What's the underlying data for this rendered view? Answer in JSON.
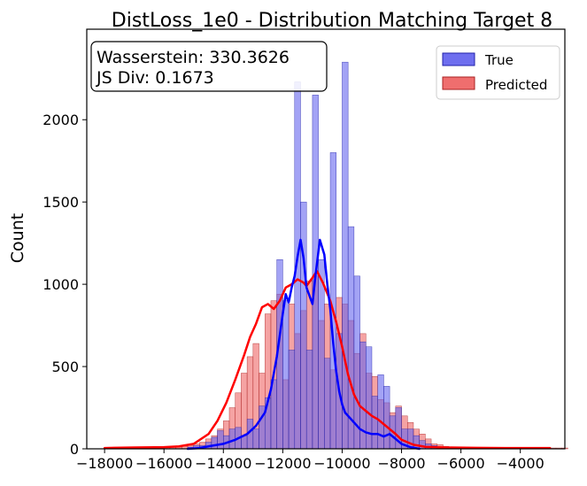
{
  "chart_data": {
    "type": "histogram",
    "title": "DistLoss_1e0 - Distribution Matching Target 8",
    "xlabel": "",
    "ylabel": "Count",
    "xlim": [
      -18600,
      -2500
    ],
    "ylim": [
      0,
      2550
    ],
    "x_ticks": [
      -18000,
      -16000,
      -14000,
      -12000,
      -10000,
      -8000,
      -6000,
      -4000
    ],
    "x_tick_labels": [
      "−18000",
      "−16000",
      "−14000",
      "−12000",
      "−10000",
      "−8000",
      "−6000",
      "−4000"
    ],
    "y_ticks": [
      0,
      500,
      1000,
      1500,
      2000
    ],
    "y_tick_labels": [
      "0",
      "500",
      "1000",
      "1500",
      "2000"
    ],
    "annotation": {
      "line1": "Wasserstein: 330.3626",
      "line2": "JS Div: 0.1673"
    },
    "legend": {
      "position": "top-right",
      "entries": [
        "True",
        "Predicted"
      ]
    },
    "colors": {
      "true_fill": "#6666ee",
      "true_edge": "#2222aa",
      "true_kde": "#0000ff",
      "pred_fill": "#ee6666",
      "pred_edge": "#aa2222",
      "pred_kde": "#ff0000"
    },
    "bins": {
      "start": -18000,
      "width": 200
    },
    "series": [
      {
        "name": "True",
        "counts": [
          0,
          0,
          0,
          0,
          0,
          0,
          0,
          0,
          0,
          0,
          0,
          0,
          0,
          0,
          10,
          20,
          20,
          40,
          70,
          110,
          80,
          120,
          130,
          80,
          180,
          120,
          260,
          310,
          420,
          1150,
          900,
          600,
          2230,
          1500,
          600,
          2150,
          1150,
          550,
          1800,
          700,
          2350,
          1350,
          1050,
          650,
          620,
          320,
          450,
          380,
          200,
          250,
          120,
          120,
          80,
          50,
          30,
          20,
          10,
          0,
          0,
          0,
          0,
          0,
          0,
          0,
          0,
          0,
          0,
          0,
          0,
          0,
          0,
          0,
          0,
          0,
          0,
          0,
          0,
          0
        ],
        "kde": [
          [
            -15200,
            0
          ],
          [
            -14800,
            5
          ],
          [
            -14400,
            18
          ],
          [
            -14000,
            30
          ],
          [
            -13600,
            55
          ],
          [
            -13200,
            90
          ],
          [
            -12900,
            140
          ],
          [
            -12600,
            220
          ],
          [
            -12400,
            360
          ],
          [
            -12200,
            560
          ],
          [
            -12000,
            820
          ],
          [
            -11900,
            940
          ],
          [
            -11800,
            890
          ],
          [
            -11700,
            980
          ],
          [
            -11600,
            1050
          ],
          [
            -11500,
            1170
          ],
          [
            -11400,
            1270
          ],
          [
            -11300,
            1160
          ],
          [
            -11200,
            980
          ],
          [
            -11000,
            880
          ],
          [
            -10900,
            1050
          ],
          [
            -10750,
            1270
          ],
          [
            -10600,
            1180
          ],
          [
            -10500,
            1000
          ],
          [
            -10400,
            850
          ],
          [
            -10300,
            640
          ],
          [
            -10200,
            470
          ],
          [
            -10100,
            350
          ],
          [
            -10000,
            270
          ],
          [
            -9900,
            220
          ],
          [
            -9800,
            200
          ],
          [
            -9600,
            160
          ],
          [
            -9400,
            120
          ],
          [
            -9200,
            100
          ],
          [
            -9000,
            90
          ],
          [
            -8800,
            90
          ],
          [
            -8600,
            75
          ],
          [
            -8400,
            90
          ],
          [
            -8200,
            60
          ],
          [
            -8000,
            30
          ],
          [
            -7700,
            10
          ],
          [
            -7400,
            0
          ]
        ]
      },
      {
        "name": "Predicted",
        "counts": [
          5,
          5,
          5,
          5,
          5,
          5,
          5,
          5,
          5,
          5,
          10,
          10,
          10,
          15,
          20,
          30,
          40,
          60,
          80,
          120,
          170,
          250,
          340,
          460,
          560,
          640,
          460,
          820,
          900,
          940,
          420,
          880,
          700,
          840,
          1020,
          1050,
          780,
          880,
          480,
          920,
          880,
          780,
          580,
          700,
          460,
          440,
          300,
          280,
          220,
          260,
          200,
          160,
          120,
          90,
          60,
          30,
          25,
          15,
          10,
          10,
          10,
          5,
          5,
          5,
          5,
          5,
          5,
          5,
          5,
          5,
          5,
          5,
          5,
          5,
          5,
          5,
          5,
          5
        ],
        "kde": [
          [
            -18000,
            5
          ],
          [
            -17000,
            8
          ],
          [
            -16000,
            10
          ],
          [
            -15500,
            15
          ],
          [
            -15000,
            30
          ],
          [
            -14500,
            90
          ],
          [
            -14200,
            170
          ],
          [
            -13900,
            280
          ],
          [
            -13600,
            420
          ],
          [
            -13300,
            570
          ],
          [
            -13100,
            680
          ],
          [
            -12900,
            760
          ],
          [
            -12700,
            860
          ],
          [
            -12500,
            880
          ],
          [
            -12300,
            850
          ],
          [
            -12100,
            900
          ],
          [
            -11900,
            980
          ],
          [
            -11700,
            1000
          ],
          [
            -11500,
            1030
          ],
          [
            -11300,
            1010
          ],
          [
            -11200,
            990
          ],
          [
            -11000,
            1040
          ],
          [
            -10850,
            1080
          ],
          [
            -10650,
            1010
          ],
          [
            -10400,
            900
          ],
          [
            -10200,
            770
          ],
          [
            -10000,
            620
          ],
          [
            -9800,
            450
          ],
          [
            -9600,
            330
          ],
          [
            -9400,
            260
          ],
          [
            -9200,
            230
          ],
          [
            -9000,
            200
          ],
          [
            -8800,
            180
          ],
          [
            -8600,
            150
          ],
          [
            -8400,
            120
          ],
          [
            -8200,
            90
          ],
          [
            -8000,
            55
          ],
          [
            -7600,
            25
          ],
          [
            -7200,
            12
          ],
          [
            -6500,
            8
          ],
          [
            -5500,
            6
          ],
          [
            -4500,
            5
          ],
          [
            -3000,
            5
          ]
        ]
      }
    ]
  }
}
